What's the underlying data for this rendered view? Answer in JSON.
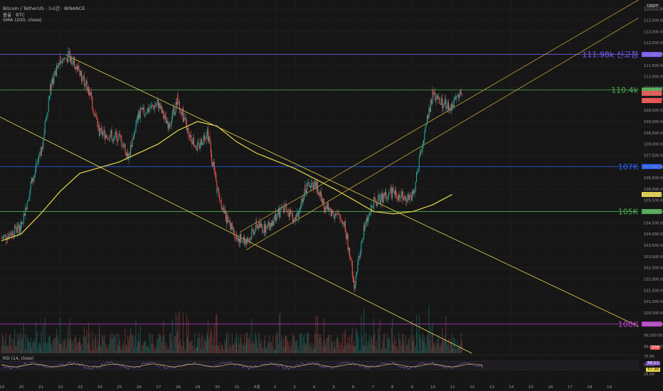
{
  "header": {
    "title": "Bitcoin / TetherUS · 1시간 · BINANCE",
    "volume_label": "볼륨 · BTC",
    "sma_label": "SMA (200, close)",
    "rsi_label": "RSI (14, close)",
    "currency": "USDT"
  },
  "colors": {
    "background": "#161616",
    "up": "#26a69a",
    "down": "#ef5350",
    "sma": "#e8d84a",
    "channel": "#c7a23a",
    "level_purple": "#7c5cff",
    "level_green": "#4caf50",
    "level_blue": "#2962ff",
    "level_magenta": "#c040d0",
    "rsi": "#7e57c2"
  },
  "levels": [
    {
      "name": "111.98k",
      "label": "111.98k 신고점",
      "value": 111980,
      "badge": "111,980.00",
      "color": "#7c5cff"
    },
    {
      "name": "110.4k",
      "label": "110.4k",
      "value": 110400,
      "badge": "110,400.00",
      "color": "#4caf50"
    },
    {
      "name": "107K",
      "label": "107K",
      "value": 107000,
      "badge": "107,000.00",
      "color": "#2962ff"
    },
    {
      "name": "105K",
      "label": "105K",
      "value": 105000,
      "badge": "105,000.00",
      "color": "#4caf50"
    },
    {
      "name": "100K",
      "label": "100K",
      "value": 100000,
      "badge": "100,000.00",
      "color": "#c040d0"
    }
  ],
  "price_badges": [
    {
      "text": "110,251.00",
      "value": 110251,
      "color": "#ef5350"
    },
    {
      "text": "27:01",
      "value": 109930,
      "color": "#ef5350"
    },
    {
      "text": "105,757.84",
      "value": 105757.84,
      "color": "#e8d84a"
    }
  ],
  "rsi_badges": [
    {
      "text": "56.11",
      "color": "#7e57c2"
    },
    {
      "text": "57.36",
      "color": "#e8d84a"
    }
  ],
  "volume_badge": {
    "text": "328",
    "color": "#ef5350"
  },
  "chart_data": {
    "type": "candlestick",
    "title": "Bitcoin / TetherUS · 1시간 · BINANCE",
    "ylim": [
      98700,
      114400
    ],
    "y_ticks": [
      99000,
      99500,
      100000,
      100500,
      101000,
      101500,
      102000,
      102500,
      103000,
      103500,
      104000,
      104500,
      105000,
      105500,
      106000,
      106500,
      107000,
      107500,
      108000,
      108500,
      109000,
      109500,
      110000,
      110500,
      111000,
      111500,
      112000,
      112500,
      113000,
      113500,
      114000
    ],
    "x_ticks": [
      "19",
      "20",
      "21",
      "22",
      "23",
      "24",
      "25",
      "26",
      "27",
      "28",
      "29",
      "30",
      "31",
      "6월",
      "2",
      "3",
      "4",
      "5",
      "6",
      "7",
      "8",
      "9",
      "10",
      "11",
      "12",
      "13",
      "14",
      "15",
      "16",
      "17",
      "18",
      "19"
    ],
    "price_path": [
      {
        "x": "19",
        "y": 103800
      },
      {
        "x": "20",
        "y": 104300
      },
      {
        "x": "20.5",
        "y": 106200
      },
      {
        "x": "21",
        "y": 107500
      },
      {
        "x": "21.5",
        "y": 110500
      },
      {
        "x": "22",
        "y": 111700
      },
      {
        "x": "22.5",
        "y": 111900
      },
      {
        "x": "23",
        "y": 111200
      },
      {
        "x": "23.5",
        "y": 110300
      },
      {
        "x": "24",
        "y": 108500
      },
      {
        "x": "25",
        "y": 108300
      },
      {
        "x": "25.5",
        "y": 107500
      },
      {
        "x": "26",
        "y": 109300
      },
      {
        "x": "27",
        "y": 109800
      },
      {
        "x": "27.5",
        "y": 108700
      },
      {
        "x": "28",
        "y": 110000
      },
      {
        "x": "28.5",
        "y": 108600
      },
      {
        "x": "29",
        "y": 107800
      },
      {
        "x": "29.5",
        "y": 108600
      },
      {
        "x": "30",
        "y": 106000
      },
      {
        "x": "30.5",
        "y": 104600
      },
      {
        "x": "31",
        "y": 103900
      },
      {
        "x": "31.5",
        "y": 103600
      },
      {
        "x": "6월",
        "y": 104400
      },
      {
        "x": "1.5",
        "y": 104200
      },
      {
        "x": "2",
        "y": 104800
      },
      {
        "x": "2.5",
        "y": 105200
      },
      {
        "x": "3",
        "y": 104600
      },
      {
        "x": "3.5",
        "y": 106000
      },
      {
        "x": "4",
        "y": 106300
      },
      {
        "x": "4.5",
        "y": 105200
      },
      {
        "x": "5",
        "y": 104900
      },
      {
        "x": "5.5",
        "y": 104500
      },
      {
        "x": "6",
        "y": 101800
      },
      {
        "x": "6.5",
        "y": 104200
      },
      {
        "x": "7",
        "y": 105400
      },
      {
        "x": "8",
        "y": 105900
      },
      {
        "x": "8.5",
        "y": 105600
      },
      {
        "x": "9",
        "y": 105700
      },
      {
        "x": "9.5",
        "y": 108100
      },
      {
        "x": "10",
        "y": 110200
      },
      {
        "x": "10.5",
        "y": 109800
      },
      {
        "x": "11",
        "y": 109700
      },
      {
        "x": "11.5",
        "y": 110300
      }
    ],
    "sma200": [
      {
        "x": "19",
        "y": 103700
      },
      {
        "x": "20",
        "y": 104000
      },
      {
        "x": "21",
        "y": 104900
      },
      {
        "x": "22",
        "y": 105900
      },
      {
        "x": "23",
        "y": 106700
      },
      {
        "x": "25",
        "y": 107200
      },
      {
        "x": "27",
        "y": 108000
      },
      {
        "x": "28",
        "y": 108600
      },
      {
        "x": "29",
        "y": 109000
      },
      {
        "x": "30",
        "y": 108800
      },
      {
        "x": "31",
        "y": 108100
      },
      {
        "x": "6월",
        "y": 107600
      },
      {
        "x": "3",
        "y": 106900
      },
      {
        "x": "5",
        "y": 106000
      },
      {
        "x": "7",
        "y": 105000
      },
      {
        "x": "8",
        "y": 104900
      },
      {
        "x": "9",
        "y": 105000
      },
      {
        "x": "10",
        "y": 105300
      },
      {
        "x": "11",
        "y": 105757.84
      }
    ],
    "legend": "top-left",
    "grid": true
  }
}
